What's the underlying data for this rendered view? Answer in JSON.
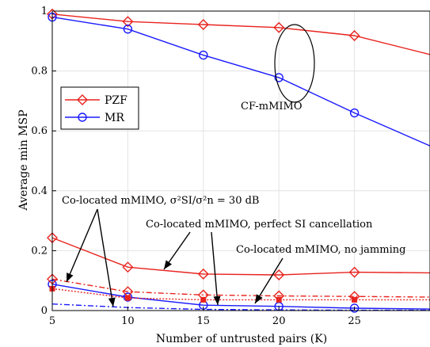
{
  "chart_data": {
    "type": "line",
    "xlabel": "Number of untrusted pairs (K)",
    "ylabel": "Average min MSP",
    "xlim": [
      5,
      30
    ],
    "ylim": [
      0,
      1
    ],
    "x_ticks": [
      "5",
      "10",
      "15",
      "20",
      "25"
    ],
    "y_ticks": [
      "0",
      "0.2",
      "0.4",
      "0.6",
      "0.8",
      "1"
    ],
    "grid": true,
    "legend": {
      "placement": "left",
      "entries": [
        {
          "label": "PZF",
          "color": "#e8231e",
          "marker": "diamond"
        },
        {
          "label": "MR",
          "color": "#1a1aff",
          "marker": "circle"
        }
      ]
    },
    "annotations": {
      "cf": "CF-mMIMO",
      "colocated_si": "Co-located mMIMO, σ²SI/σ²n = 30 dB",
      "colocated_perfect": "Co-located mMIMO, perfect SI cancellation",
      "colocated_nojam": "Co-located mMIMO, no jamming"
    },
    "series": [
      {
        "name": "PZF",
        "group": "CF-mMIMO",
        "color": "#e8231e",
        "marker": "diamond",
        "style": "solid",
        "x": [
          5,
          10,
          15,
          20,
          25,
          30
        ],
        "y": [
          0.99,
          0.965,
          0.955,
          0.945,
          0.918,
          0.855
        ]
      },
      {
        "name": "MR",
        "group": "CF-mMIMO",
        "color": "#1a1aff",
        "marker": "circle",
        "style": "solid",
        "x": [
          5,
          10,
          15,
          20,
          25,
          30
        ],
        "y": [
          0.98,
          0.94,
          0.853,
          0.778,
          0.66,
          0.55
        ]
      },
      {
        "name": "PZF",
        "group": "Co-located mMIMO, SI 30 dB",
        "color": "#e8231e",
        "marker": "diamond",
        "style": "solid",
        "x": [
          5,
          10,
          15,
          20,
          25,
          30
        ],
        "y": [
          0.243,
          0.145,
          0.122,
          0.119,
          0.128,
          0.126
        ]
      },
      {
        "name": "MR",
        "group": "Co-located mMIMO, SI 30 dB",
        "color": "#1a1aff",
        "marker": "circle",
        "style": "solid",
        "x": [
          5,
          10,
          15,
          20,
          25,
          30
        ],
        "y": [
          0.088,
          0.045,
          0.018,
          0.014,
          0.008,
          0.005
        ]
      },
      {
        "name": "PZF",
        "group": "Co-located mMIMO, perfect SI cancellation",
        "color": "#e8231e",
        "marker": "diamond",
        "style": "dashdot",
        "x": [
          5,
          10,
          15,
          20,
          25,
          30
        ],
        "y": [
          0.105,
          0.063,
          0.052,
          0.049,
          0.047,
          0.045
        ]
      },
      {
        "name": "PZF",
        "group": "Co-located mMIMO, no jamming",
        "color": "#e8231e",
        "marker": "square",
        "style": "dotted",
        "x": [
          5,
          10,
          15,
          20,
          25,
          30
        ],
        "y": [
          0.073,
          0.042,
          0.036,
          0.036,
          0.036,
          0.036
        ]
      },
      {
        "name": "MR",
        "group": "Co-located mMIMO, perfect SI cancellation",
        "color": "#1a1aff",
        "marker": "none",
        "style": "dashdot",
        "x": [
          5,
          10,
          15,
          20,
          25,
          30
        ],
        "y": [
          0.022,
          0.01,
          0.004,
          0.002,
          0.001,
          0.001
        ]
      }
    ]
  }
}
